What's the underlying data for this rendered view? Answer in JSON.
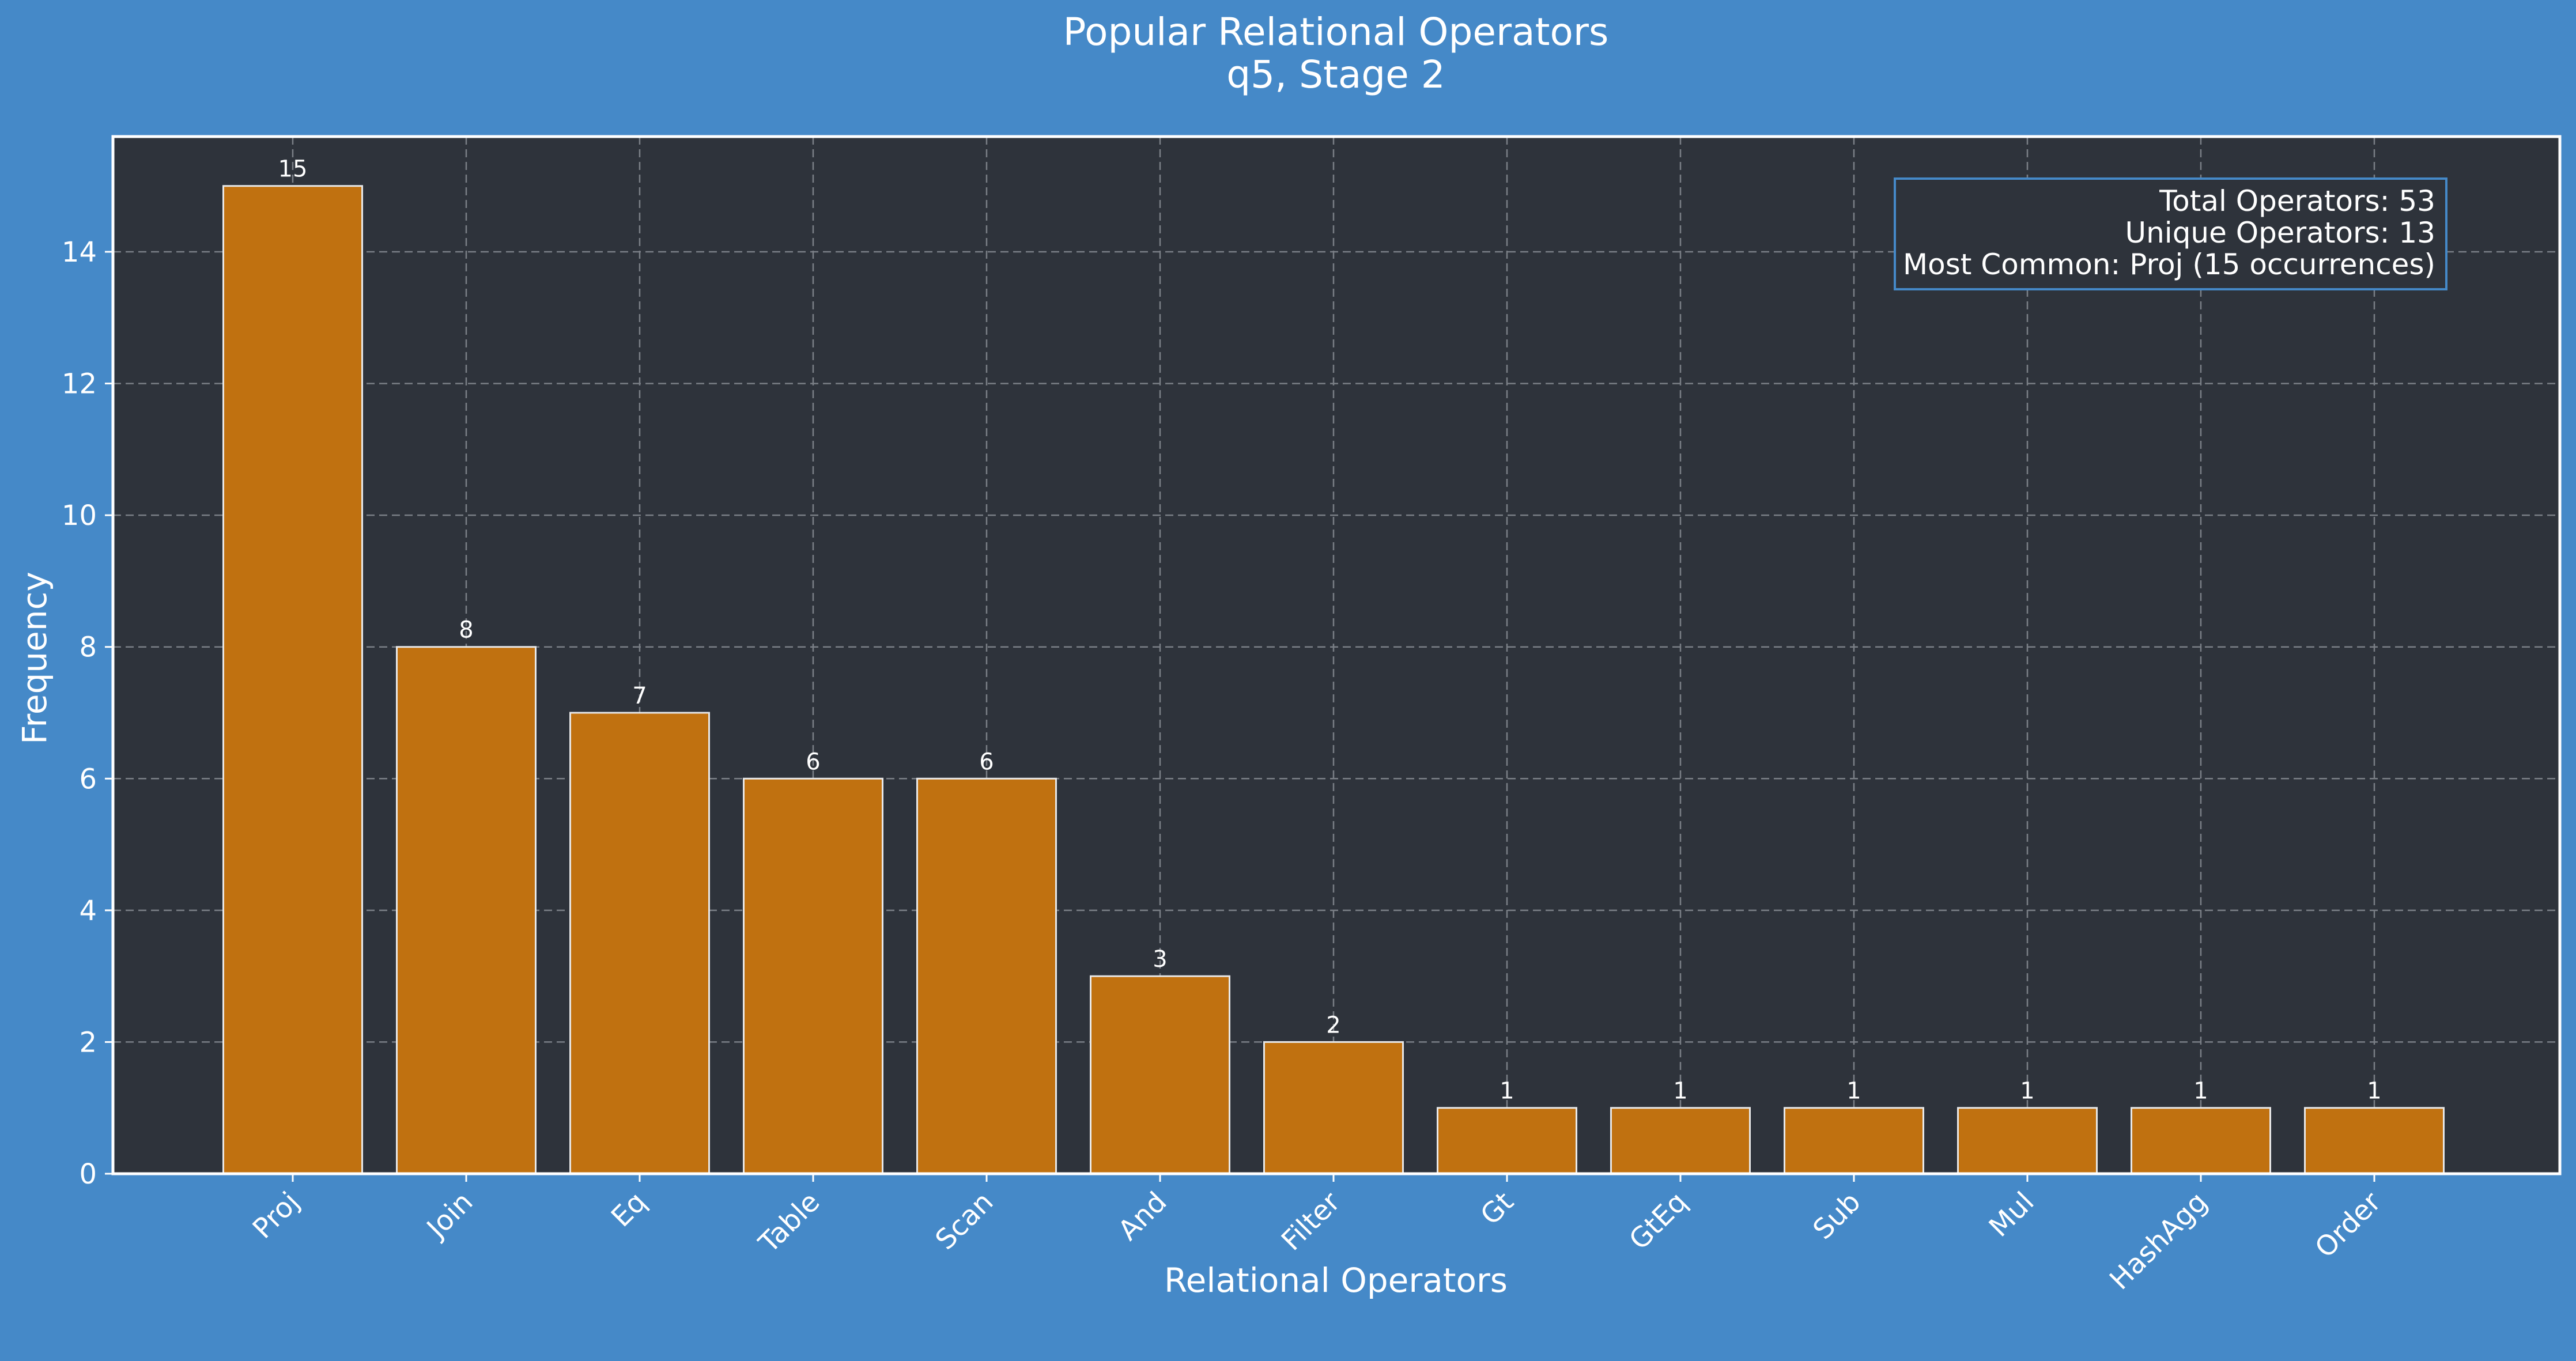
{
  "chart_data": {
    "type": "bar",
    "title": "Popular Relational Operators",
    "subtitle": "q5, Stage 2",
    "xlabel": "Relational Operators",
    "ylabel": "Frequency",
    "categories": [
      "Proj",
      "Join",
      "Eq",
      "Table",
      "Scan",
      "And",
      "Filter",
      "Gt",
      "GtEq",
      "Sub",
      "Mul",
      "HashAgg",
      "Order"
    ],
    "values": [
      15,
      8,
      7,
      6,
      6,
      3,
      2,
      1,
      1,
      1,
      1,
      1,
      1
    ],
    "ylim": [
      0,
      15.75
    ],
    "yticks": [
      0,
      2,
      4,
      6,
      8,
      10,
      12,
      14
    ],
    "grid": true,
    "legend": "none",
    "stats_box": {
      "placement": "top-right",
      "lines": [
        "Total Operators: 53",
        "Unique Operators: 13",
        "Most Common: Proj (15 occurrences)"
      ]
    },
    "colors": {
      "background": "#4589c8",
      "plot_background": "#2e333b",
      "bar_fill": "#c07110",
      "bar_edge": "#e8e8e8",
      "grid": "#7a7f86",
      "text": "#ffffff",
      "stats_border": "#4589c8"
    }
  }
}
